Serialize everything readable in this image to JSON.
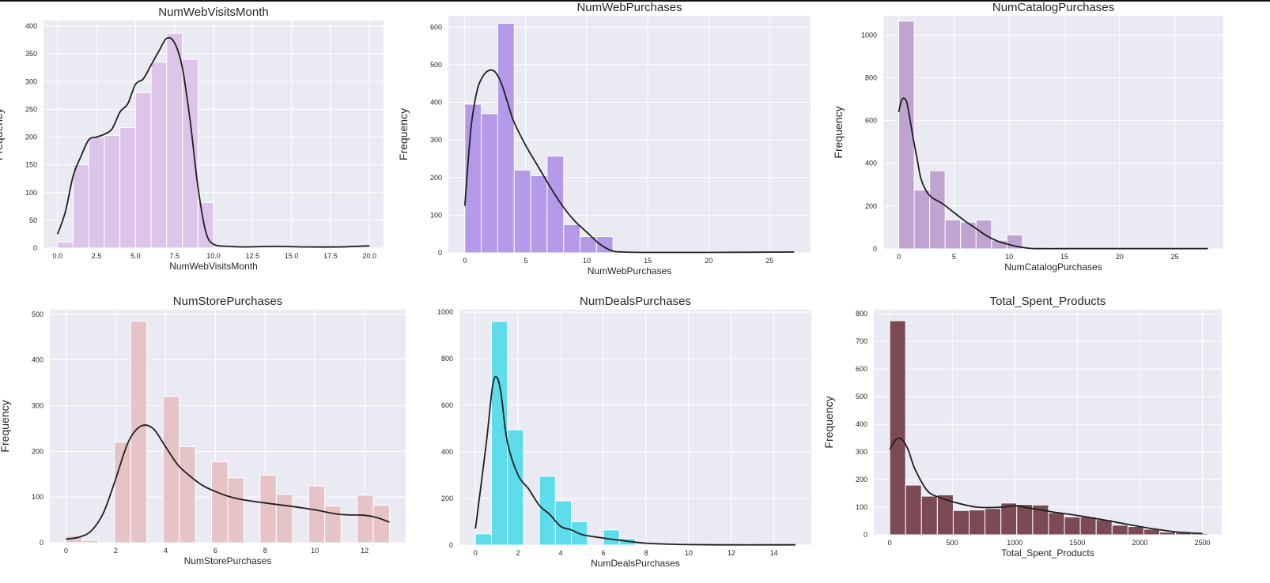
{
  "chart_data": [
    {
      "type": "bar",
      "title": "NumWebVisitsMonth",
      "xlabel": "NumWebVisitsMonth",
      "ylabel": "Frequency",
      "color": "#dcc5e8",
      "xlim": [
        -0.9,
        20.9
      ],
      "ylim": [
        0,
        410
      ],
      "xticks": [
        0.0,
        2.5,
        5.0,
        7.5,
        10.0,
        12.5,
        15.0,
        17.5,
        20.0
      ],
      "xtick_labels": [
        "0.0",
        "2.5",
        "5.0",
        "7.5",
        "10.0",
        "12.5",
        "15.0",
        "17.5",
        "20.0"
      ],
      "yticks": [
        0,
        50,
        100,
        150,
        200,
        250,
        300,
        350,
        400
      ],
      "bins": [
        [
          0,
          1
        ],
        [
          1,
          2
        ],
        [
          2,
          3
        ],
        [
          3,
          4
        ],
        [
          4,
          5
        ],
        [
          5,
          6
        ],
        [
          6,
          7
        ],
        [
          7,
          8
        ],
        [
          8,
          9
        ],
        [
          9,
          10
        ]
      ],
      "values": [
        11,
        150,
        200,
        203,
        217,
        280,
        335,
        387,
        340,
        82
      ],
      "kde": {
        "x": [
          0,
          0.5,
          1,
          1.5,
          2,
          2.5,
          3,
          3.5,
          4,
          4.5,
          5,
          5.5,
          6,
          6.5,
          7,
          7.5,
          8,
          8.5,
          9,
          9.5,
          10,
          11,
          12,
          14,
          16,
          18,
          20
        ],
        "y": [
          25,
          65,
          130,
          165,
          195,
          200,
          205,
          215,
          245,
          260,
          295,
          305,
          330,
          355,
          378,
          370,
          325,
          230,
          110,
          30,
          7,
          3,
          2,
          3,
          2,
          2,
          4
        ]
      }
    },
    {
      "type": "bar",
      "title": "NumWebPurchases",
      "xlabel": "NumWebPurchases",
      "ylabel": "Frequency",
      "color": "#b49ae8",
      "xlim": [
        -1.35,
        28.35
      ],
      "ylim": [
        0,
        630
      ],
      "xticks": [
        0,
        5,
        10,
        15,
        20,
        25
      ],
      "xtick_labels": [
        "0",
        "5",
        "10",
        "15",
        "20",
        "25"
      ],
      "yticks": [
        0,
        100,
        200,
        300,
        400,
        500,
        600
      ],
      "bins": [
        [
          0,
          1.35
        ],
        [
          1.35,
          2.7
        ],
        [
          2.7,
          4.05
        ],
        [
          4.05,
          5.4
        ],
        [
          5.4,
          6.75
        ],
        [
          6.75,
          8.1
        ],
        [
          8.1,
          9.45
        ],
        [
          9.45,
          10.8
        ],
        [
          10.8,
          12.15
        ]
      ],
      "values": [
        395,
        370,
        610,
        220,
        205,
        257,
        75,
        43,
        43
      ],
      "kde": {
        "x": [
          0,
          0.5,
          1,
          1.5,
          2,
          2.5,
          3,
          3.5,
          4,
          5,
          6,
          7,
          8,
          9,
          10,
          11,
          12,
          13,
          15,
          20,
          27
        ],
        "y": [
          125,
          330,
          430,
          470,
          485,
          480,
          450,
          400,
          350,
          285,
          230,
          175,
          125,
          85,
          55,
          25,
          6,
          2,
          1,
          1,
          2
        ]
      }
    },
    {
      "type": "bar",
      "title": "NumCatalogPurchases",
      "xlabel": "NumCatalogPurchases",
      "ylabel": "Frequency",
      "color": "#bfa4d2",
      "xlim": [
        -1.4,
        29.4
      ],
      "ylim": [
        0,
        1090
      ],
      "xticks": [
        0,
        5,
        10,
        15,
        20,
        25
      ],
      "xtick_labels": [
        "0",
        "5",
        "10",
        "15",
        "20",
        "25"
      ],
      "yticks": [
        0,
        200,
        400,
        600,
        800,
        1000
      ],
      "bins": [
        [
          0,
          1.4
        ],
        [
          1.4,
          2.8
        ],
        [
          2.8,
          4.2
        ],
        [
          4.2,
          5.6
        ],
        [
          5.6,
          7
        ],
        [
          7,
          8.4
        ],
        [
          8.4,
          9.8
        ],
        [
          9.8,
          11.2
        ]
      ],
      "values": [
        1065,
        275,
        365,
        135,
        125,
        135,
        40,
        65
      ],
      "kde": {
        "x": [
          0,
          0.3,
          0.7,
          1,
          1.3,
          1.7,
          2,
          2.5,
          3,
          3.5,
          4,
          5,
          6,
          7,
          8,
          9,
          10,
          11,
          12,
          13,
          15,
          20,
          28
        ],
        "y": [
          640,
          700,
          690,
          610,
          520,
          410,
          330,
          270,
          240,
          225,
          210,
          170,
          130,
          95,
          60,
          35,
          20,
          8,
          2,
          1,
          1,
          1,
          1
        ]
      }
    },
    {
      "type": "bar",
      "title": "NumStorePurchases",
      "xlabel": "NumStorePurchases",
      "ylabel": "Frequency",
      "color": "#e6c3c7",
      "xlim": [
        -0.65,
        13.65
      ],
      "ylim": [
        0,
        510
      ],
      "xticks": [
        0,
        2,
        4,
        6,
        8,
        10,
        12
      ],
      "xtick_labels": [
        "0",
        "2",
        "4",
        "6",
        "8",
        "10",
        "12"
      ],
      "yticks": [
        0,
        100,
        200,
        300,
        400,
        500
      ],
      "bins": [
        [
          0,
          0.65
        ],
        [
          0.65,
          1.3
        ],
        [
          1.3,
          1.95
        ],
        [
          1.95,
          2.6
        ],
        [
          2.6,
          3.25
        ],
        [
          3.25,
          3.9
        ],
        [
          3.9,
          4.55
        ],
        [
          4.55,
          5.2
        ],
        [
          5.2,
          5.85
        ],
        [
          5.85,
          6.5
        ],
        [
          6.5,
          7.15
        ],
        [
          7.15,
          7.8
        ],
        [
          7.8,
          8.45
        ],
        [
          8.45,
          9.1
        ],
        [
          9.1,
          9.75
        ],
        [
          9.75,
          10.4
        ],
        [
          10.4,
          11.05
        ],
        [
          11.05,
          11.7
        ],
        [
          11.7,
          12.35
        ],
        [
          12.35,
          13
        ]
      ],
      "values": [
        15,
        5,
        0,
        220,
        485,
        0,
        320,
        210,
        0,
        177,
        142,
        0,
        148,
        106,
        0,
        124,
        80,
        0,
        104,
        82
      ],
      "kde": {
        "x": [
          0,
          0.5,
          1,
          1.5,
          2,
          2.5,
          3,
          3.5,
          4,
          4.5,
          5,
          5.5,
          6,
          6.5,
          7,
          8,
          9,
          10,
          11,
          12,
          12.5,
          13
        ],
        "y": [
          8,
          12,
          25,
          65,
          140,
          220,
          255,
          250,
          210,
          170,
          145,
          125,
          112,
          102,
          95,
          87,
          80,
          72,
          62,
          60,
          55,
          45
        ]
      }
    },
    {
      "type": "bar",
      "title": "NumDealsPurchases",
      "xlabel": "NumDealsPurchases",
      "ylabel": "",
      "color": "#5fdceb",
      "xlim": [
        -0.75,
        15.75
      ],
      "ylim": [
        0,
        1010
      ],
      "xticks": [
        0,
        2,
        4,
        6,
        8,
        10,
        12,
        14
      ],
      "xtick_labels": [
        "0",
        "2",
        "4",
        "6",
        "8",
        "10",
        "12",
        "14"
      ],
      "yticks": [
        0,
        200,
        400,
        600,
        800,
        1000
      ],
      "bins": [
        [
          0,
          0.75
        ],
        [
          0.75,
          1.5
        ],
        [
          1.5,
          2.25
        ],
        [
          2.25,
          3
        ],
        [
          3,
          3.75
        ],
        [
          3.75,
          4.5
        ],
        [
          4.5,
          5.25
        ],
        [
          5.25,
          6
        ],
        [
          6,
          6.75
        ],
        [
          6.75,
          7.5
        ]
      ],
      "values": [
        48,
        960,
        495,
        0,
        295,
        190,
        100,
        0,
        65,
        28
      ],
      "kde": {
        "x": [
          0,
          0.5,
          0.8,
          1,
          1.2,
          1.5,
          2,
          2.5,
          3,
          3.5,
          4,
          4.5,
          5,
          6,
          7,
          8,
          9,
          10,
          12,
          14,
          15
        ],
        "y": [
          70,
          430,
          680,
          720,
          650,
          440,
          300,
          240,
          170,
          130,
          80,
          65,
          45,
          30,
          18,
          8,
          4,
          2,
          1,
          1,
          1
        ]
      }
    },
    {
      "type": "bar",
      "title": "Total_Spent_Products",
      "xlabel": "Total_Spent_Products",
      "ylabel": "Frequency",
      "color": "#7c4a54",
      "xlim": [
        -127,
        2655
      ],
      "ylim": [
        0,
        815
      ],
      "xticks": [
        0,
        500,
        1000,
        1500,
        2000,
        2500
      ],
      "xtick_labels": [
        "0",
        "500",
        "1000",
        "1500",
        "2000",
        "2500"
      ],
      "yticks": [
        0,
        100,
        200,
        300,
        400,
        500,
        600,
        700,
        800
      ],
      "bins": [
        [
          0,
          127
        ],
        [
          127,
          254
        ],
        [
          254,
          381
        ],
        [
          381,
          508
        ],
        [
          508,
          635
        ],
        [
          635,
          762
        ],
        [
          762,
          889
        ],
        [
          889,
          1016
        ],
        [
          1016,
          1143
        ],
        [
          1143,
          1270
        ],
        [
          1270,
          1397
        ],
        [
          1397,
          1524
        ],
        [
          1524,
          1651
        ],
        [
          1651,
          1778
        ],
        [
          1778,
          1905
        ],
        [
          1905,
          2032
        ],
        [
          2032,
          2159
        ],
        [
          2159,
          2286
        ],
        [
          2286,
          2413
        ],
        [
          2413,
          2540
        ]
      ],
      "values": [
        775,
        180,
        140,
        145,
        88,
        90,
        95,
        115,
        110,
        108,
        80,
        65,
        65,
        55,
        35,
        30,
        20,
        10,
        8,
        5
      ],
      "kde": {
        "x": [
          0,
          50,
          100,
          150,
          200,
          300,
          400,
          500,
          700,
          900,
          1000,
          1100,
          1300,
          1500,
          1700,
          1900,
          2100,
          2300,
          2500
        ],
        "y": [
          310,
          345,
          345,
          305,
          240,
          160,
          135,
          120,
          100,
          100,
          105,
          98,
          83,
          70,
          55,
          38,
          22,
          10,
          5
        ]
      }
    }
  ]
}
